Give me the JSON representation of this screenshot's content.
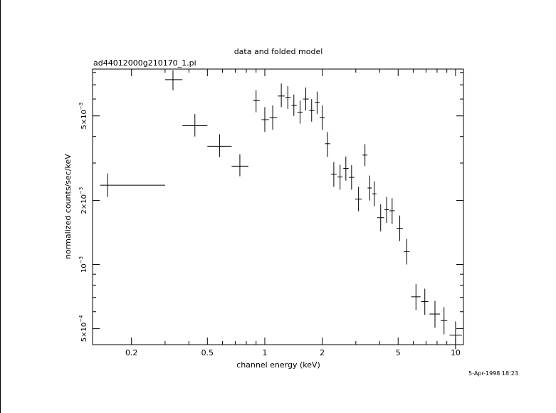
{
  "chart_data": {
    "type": "scatter",
    "title": "data and folded model",
    "subtitle": "ad44012000g210170_1.pi",
    "xlabel": "channel energy (keV)",
    "ylabel": "normalized counts/sec/keV",
    "timestamp": "5-Apr-1998 18:23",
    "x_scale": "log",
    "y_scale": "log",
    "xlim": [
      0.125,
      11.0
    ],
    "ylim": [
      0.00042,
      0.0083
    ],
    "x_ticks": [
      {
        "value": 0.2,
        "label": "0.2"
      },
      {
        "value": 0.5,
        "label": "0.5"
      },
      {
        "value": 1,
        "label": "1"
      },
      {
        "value": 2,
        "label": "2"
      },
      {
        "value": 5,
        "label": "5"
      },
      {
        "value": 10,
        "label": "10"
      }
    ],
    "y_ticks": [
      {
        "value": 0.0005,
        "mant": "5×10",
        "exp": "−4"
      },
      {
        "value": 0.001,
        "mant": "10",
        "exp": "−3"
      },
      {
        "value": 0.002,
        "mant": "2×10",
        "exp": "−3"
      },
      {
        "value": 0.005,
        "mant": "5×10",
        "exp": "−3"
      }
    ],
    "points": [
      {
        "x": 0.15,
        "xerr": [
          0.137,
          0.3
        ],
        "y": 0.00236,
        "yerr": [
          0.00208,
          0.00268
        ]
      },
      {
        "x": 0.33,
        "xerr": [
          0.3,
          0.37
        ],
        "y": 0.0074,
        "yerr": [
          0.0066,
          0.0082
        ]
      },
      {
        "x": 0.43,
        "xerr": [
          0.37,
          0.5
        ],
        "y": 0.0045,
        "yerr": [
          0.004,
          0.0051
        ]
      },
      {
        "x": 0.58,
        "xerr": [
          0.5,
          0.67
        ],
        "y": 0.0036,
        "yerr": [
          0.0032,
          0.0041
        ]
      },
      {
        "x": 0.74,
        "xerr": [
          0.67,
          0.82
        ],
        "y": 0.0029,
        "yerr": [
          0.0026,
          0.0033
        ]
      },
      {
        "x": 0.9,
        "xerr": [
          0.87,
          0.94
        ],
        "y": 0.0059,
        "yerr": [
          0.0052,
          0.0066
        ]
      },
      {
        "x": 1.0,
        "xerr": [
          0.96,
          1.05
        ],
        "y": 0.0048,
        "yerr": [
          0.0042,
          0.0055
        ]
      },
      {
        "x": 1.1,
        "xerr": [
          1.06,
          1.16
        ],
        "y": 0.0049,
        "yerr": [
          0.0043,
          0.0056
        ]
      },
      {
        "x": 1.22,
        "xerr": [
          1.17,
          1.27
        ],
        "y": 0.0062,
        "yerr": [
          0.0055,
          0.0071
        ]
      },
      {
        "x": 1.32,
        "xerr": [
          1.28,
          1.37
        ],
        "y": 0.0061,
        "yerr": [
          0.0054,
          0.0069
        ]
      },
      {
        "x": 1.42,
        "xerr": [
          1.38,
          1.47
        ],
        "y": 0.0056,
        "yerr": [
          0.005,
          0.0063
        ]
      },
      {
        "x": 1.53,
        "xerr": [
          1.48,
          1.58
        ],
        "y": 0.0052,
        "yerr": [
          0.0046,
          0.0059
        ]
      },
      {
        "x": 1.64,
        "xerr": [
          1.59,
          1.7
        ],
        "y": 0.006,
        "yerr": [
          0.0053,
          0.0068
        ]
      },
      {
        "x": 1.76,
        "xerr": [
          1.71,
          1.82
        ],
        "y": 0.0053,
        "yerr": [
          0.0047,
          0.006
        ]
      },
      {
        "x": 1.88,
        "xerr": [
          1.83,
          1.94
        ],
        "y": 0.0058,
        "yerr": [
          0.0051,
          0.0065
        ]
      },
      {
        "x": 2.0,
        "xerr": [
          1.94,
          2.06
        ],
        "y": 0.0049,
        "yerr": [
          0.0043,
          0.0056
        ]
      },
      {
        "x": 2.13,
        "xerr": [
          2.07,
          2.2
        ],
        "y": 0.0037,
        "yerr": [
          0.0032,
          0.0042
        ]
      },
      {
        "x": 2.3,
        "xerr": [
          2.22,
          2.38
        ],
        "y": 0.00266,
        "yerr": [
          0.00232,
          0.00303
        ]
      },
      {
        "x": 2.48,
        "xerr": [
          2.4,
          2.56
        ],
        "y": 0.00258,
        "yerr": [
          0.00225,
          0.00295
        ]
      },
      {
        "x": 2.66,
        "xerr": [
          2.58,
          2.75
        ],
        "y": 0.00283,
        "yerr": [
          0.00248,
          0.00322
        ]
      },
      {
        "x": 2.85,
        "xerr": [
          2.76,
          2.95
        ],
        "y": 0.00257,
        "yerr": [
          0.00225,
          0.00293
        ]
      },
      {
        "x": 3.1,
        "xerr": [
          2.97,
          3.23
        ],
        "y": 0.00203,
        "yerr": [
          0.00178,
          0.00232
        ]
      },
      {
        "x": 3.35,
        "xerr": [
          3.25,
          3.45
        ],
        "y": 0.00327,
        "yerr": [
          0.0029,
          0.00368
        ]
      },
      {
        "x": 3.55,
        "xerr": [
          3.46,
          3.65
        ],
        "y": 0.00229,
        "yerr": [
          0.002,
          0.00262
        ]
      },
      {
        "x": 3.75,
        "xerr": [
          3.66,
          3.85
        ],
        "y": 0.00215,
        "yerr": [
          0.00188,
          0.00246
        ]
      },
      {
        "x": 4.05,
        "xerr": [
          3.88,
          4.22
        ],
        "y": 0.00166,
        "yerr": [
          0.00143,
          0.00192
        ]
      },
      {
        "x": 4.35,
        "xerr": [
          4.24,
          4.46
        ],
        "y": 0.00181,
        "yerr": [
          0.00157,
          0.00208
        ]
      },
      {
        "x": 4.65,
        "xerr": [
          4.5,
          4.8
        ],
        "y": 0.00179,
        "yerr": [
          0.00155,
          0.00205
        ]
      },
      {
        "x": 5.1,
        "xerr": [
          4.9,
          5.3
        ],
        "y": 0.00148,
        "yerr": [
          0.00129,
          0.0017
        ]
      },
      {
        "x": 5.55,
        "xerr": [
          5.35,
          5.75
        ],
        "y": 0.00115,
        "yerr": [
          0.001,
          0.00132
        ]
      },
      {
        "x": 6.2,
        "xerr": [
          5.85,
          6.55
        ],
        "y": 0.000705,
        "yerr": [
          0.00061,
          0.00081
        ]
      },
      {
        "x": 6.9,
        "xerr": [
          6.6,
          7.2
        ],
        "y": 0.00067,
        "yerr": [
          0.00058,
          0.00077
        ]
      },
      {
        "x": 7.8,
        "xerr": [
          7.3,
          8.3
        ],
        "y": 0.000585,
        "yerr": [
          0.000505,
          0.000675
        ]
      },
      {
        "x": 8.7,
        "xerr": [
          8.35,
          9.05
        ],
        "y": 0.000545,
        "yerr": [
          0.00047,
          0.00063
        ]
      },
      {
        "x": 10.0,
        "xerr": [
          9.3,
          10.8
        ],
        "y": 0.000465,
        "yerr": [
          0.0004,
          0.00054
        ]
      }
    ]
  }
}
